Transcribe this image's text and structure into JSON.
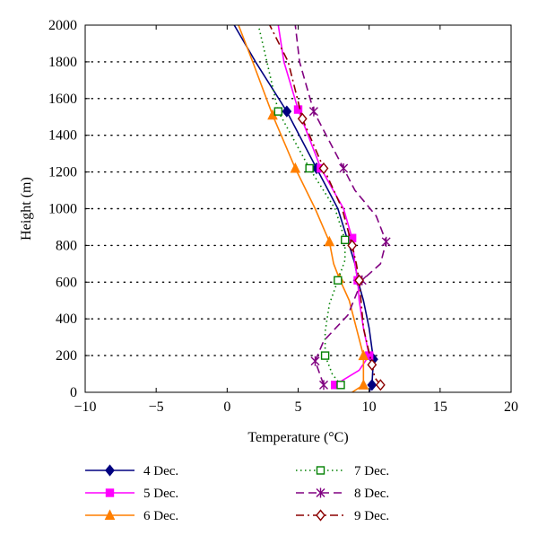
{
  "chart_data": {
    "type": "line",
    "title": "",
    "xlabel": "Temperature (°C)",
    "ylabel": "Height (m)",
    "xlim": [
      -10,
      20
    ],
    "ylim": [
      0,
      2000
    ],
    "xticks": [
      -10,
      -5,
      0,
      5,
      10,
      15,
      20
    ],
    "yticks": [
      0,
      200,
      400,
      600,
      800,
      1000,
      1200,
      1400,
      1600,
      1800,
      2000
    ],
    "x_tick_labels": [
      "−10",
      "−5",
      "0",
      "5",
      "10",
      "15",
      "20"
    ],
    "y_tick_labels": [
      "0",
      "200",
      "400",
      "600",
      "800",
      "1000",
      "1200",
      "1400",
      "1600",
      "1800",
      "2000"
    ],
    "grid": "horizontal dotted",
    "legend": "bottom, two columns",
    "series": [
      {
        "name": "4 Dec.",
        "color": "#000080",
        "dash": "solid",
        "marker": "diamond-filled",
        "x": [
          10.0,
          10.2,
          10.3,
          10.0,
          9.6,
          9.2,
          9.0,
          8.6,
          7.8,
          6.3,
          4.2,
          2.0,
          0.5
        ],
        "y": [
          0,
          40,
          180,
          350,
          500,
          610,
          700,
          800,
          1000,
          1220,
          1530,
          1800,
          2000
        ],
        "marker_indices": [
          1,
          2,
          5,
          9,
          10
        ]
      },
      {
        "name": "5 Dec.",
        "color": "#ff00ff",
        "dash": "solid",
        "marker": "square-filled",
        "x": [
          7.6,
          9.3,
          10.0,
          9.6,
          9.3,
          9.2,
          9.0,
          8.8,
          8.2,
          6.6,
          5.0,
          4.0,
          3.6
        ],
        "y": [
          40,
          120,
          200,
          350,
          500,
          610,
          700,
          840,
          1000,
          1220,
          1540,
          1800,
          2000
        ],
        "marker_indices": [
          0,
          2,
          5,
          7,
          9,
          10
        ]
      },
      {
        "name": "6 Dec.",
        "color": "#ff7f00",
        "dash": "solid",
        "marker": "triangle-filled",
        "x": [
          8.8,
          9.6,
          9.6,
          9.1,
          8.6,
          7.9,
          7.5,
          7.2,
          6.2,
          4.8,
          3.2,
          1.8,
          0.8
        ],
        "y": [
          0,
          40,
          200,
          350,
          500,
          620,
          700,
          820,
          1000,
          1220,
          1510,
          1800,
          2000
        ],
        "marker_indices": [
          1,
          2,
          5,
          7,
          9,
          10
        ]
      },
      {
        "name": "7 Dec.",
        "color": "#008000",
        "dash": "dotted",
        "marker": "square-open",
        "x": [
          8.0,
          7.4,
          6.9,
          6.9,
          7.2,
          7.8,
          8.3,
          8.3,
          7.6,
          5.8,
          3.6,
          2.8,
          2.2
        ],
        "y": [
          40,
          100,
          200,
          330,
          480,
          610,
          720,
          830,
          1000,
          1220,
          1530,
          1800,
          2000
        ],
        "marker_indices": [
          0,
          2,
          5,
          7,
          9,
          10
        ]
      },
      {
        "name": "8 Dec.",
        "color": "#800080",
        "dash": "dashed",
        "marker": "asterisk",
        "x": [
          6.8,
          6.2,
          6.8,
          8.5,
          9.5,
          10.8,
          11.2,
          10.5,
          9.0,
          8.2,
          6.1,
          5.1,
          4.8
        ],
        "y": [
          40,
          170,
          280,
          420,
          610,
          700,
          820,
          960,
          1100,
          1220,
          1530,
          1800,
          2000
        ],
        "marker_indices": [
          0,
          1,
          4,
          6,
          9,
          10
        ]
      },
      {
        "name": "9 Dec.",
        "color": "#8b0000",
        "dash": "dashdot",
        "marker": "diamond-open",
        "x": [
          10.8,
          10.4,
          10.2,
          9.6,
          9.3,
          9.1,
          8.8,
          8.1,
          6.8,
          5.3,
          4.3,
          3.0
        ],
        "y": [
          40,
          80,
          150,
          350,
          610,
          700,
          800,
          1000,
          1220,
          1490,
          1800,
          2000
        ],
        "marker_indices": [
          0,
          2,
          4,
          6,
          8,
          9
        ]
      }
    ]
  }
}
